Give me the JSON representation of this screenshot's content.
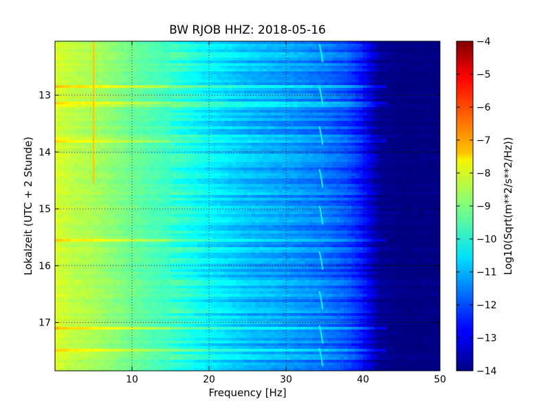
{
  "chart_data": {
    "type": "heatmap",
    "title": "BW RJOB HHZ: 2018-05-16",
    "xlabel": "Frequency [Hz]",
    "ylabel": "Lokalzeit (UTC + 2 Stunde)",
    "xlim": [
      0,
      50
    ],
    "ylim": [
      12.05,
      17.85
    ],
    "y_inverted": true,
    "xticks": [
      10,
      20,
      30,
      40,
      50
    ],
    "xtick_labels": [
      "10",
      "20",
      "30",
      "40",
      "50"
    ],
    "yticks": [
      13,
      14,
      15,
      16,
      17
    ],
    "ytick_labels": [
      "13",
      "14",
      "15",
      "16",
      "17"
    ],
    "grid": true,
    "colormap": "jet",
    "colorbar": {
      "label": "Log10(Sqrt(m**2/s**2/Hz))",
      "range": [
        -14,
        -4
      ],
      "ticks": [
        -4,
        -5,
        -6,
        -7,
        -8,
        -9,
        -10,
        -11,
        -12,
        -13,
        -14
      ],
      "tick_labels": [
        "−4",
        "−5",
        "−6",
        "−7",
        "−8",
        "−9",
        "−10",
        "−11",
        "−12",
        "−13",
        "−14"
      ]
    },
    "spectral_profile": {
      "frequency_hz": [
        0,
        2,
        5,
        10,
        15,
        18,
        20,
        25,
        30,
        35,
        38,
        40,
        41,
        42,
        45,
        50
      ],
      "log10_amplitude": [
        -8.1,
        -8.4,
        -8.6,
        -9.2,
        -9.7,
        -10.1,
        -10.4,
        -10.9,
        -11.2,
        -11.6,
        -12.0,
        -12.6,
        -13.2,
        -13.8,
        -14.0,
        -14.0
      ]
    },
    "features": {
      "narrowband_line_hz": 5.0,
      "narrowband_line_until_hour": 14.55,
      "narrowband_line_level": -7.2,
      "gliding_line_hz": 34.3,
      "broadband_bursts_hour": [
        12.85,
        13.15,
        13.8,
        15.55,
        17.1,
        17.5
      ]
    }
  },
  "colors": {
    "background": "#ffffff",
    "axes": "#000000",
    "grid": "#000000"
  }
}
